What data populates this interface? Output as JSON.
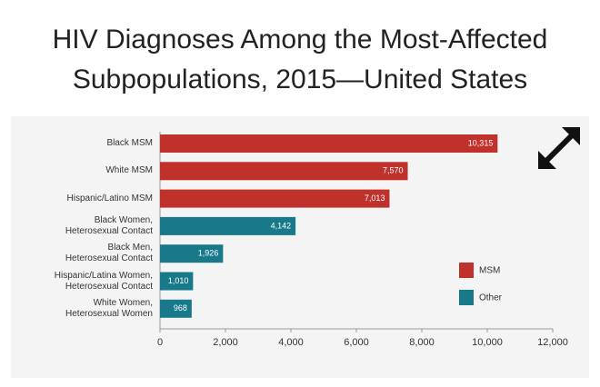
{
  "chart_data": {
    "type": "hbar",
    "title": "HIV Diagnoses Among the Most-Affected\nSubpopulations, 2015—United States",
    "categories": [
      "Black MSM",
      "White MSM",
      "Hispanic/Latino MSM",
      "Black Women,\nHeterosexual Contact",
      "Black Men,\nHeterosexual Contact",
      "Hispanic/Latina Women,\nHeterosexual Contact",
      "White Women,\nHeterosexual Women"
    ],
    "series": [
      {
        "name": "MSM",
        "color": "#c1312c",
        "values": [
          10315,
          7570,
          7013,
          null,
          null,
          null,
          null
        ],
        "value_labels": [
          "10,315",
          "7,570",
          "7,013",
          null,
          null,
          null,
          null
        ]
      },
      {
        "name": "Other",
        "color": "#17798a",
        "values": [
          null,
          null,
          null,
          4142,
          1926,
          1010,
          968
        ],
        "value_labels": [
          null,
          null,
          null,
          "4,142",
          "1,926",
          "1,010",
          "968"
        ]
      }
    ],
    "xlim": [
      0,
      12000
    ],
    "xticks": [
      0,
      {
        "value": 2000,
        "label": "2,000"
      },
      {
        "value": 4000,
        "label": "4,000"
      },
      {
        "value": 6000,
        "label": "6,000"
      },
      {
        "value": 8000,
        "label": "8,000"
      },
      {
        "value": 10000,
        "label": "10,000"
      },
      {
        "value": 12000,
        "label": "12,000"
      }
    ],
    "legend": "lower-right"
  }
}
